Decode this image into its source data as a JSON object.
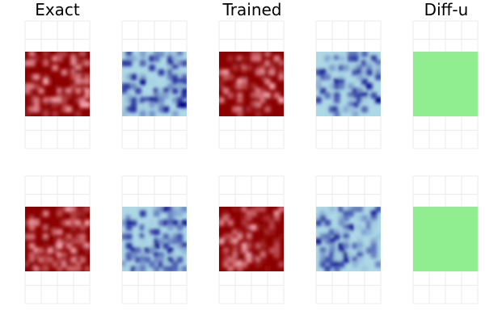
{
  "columns": [
    {
      "title": "Exact"
    },
    {
      "title": ""
    },
    {
      "title": "Trained"
    },
    {
      "title": ""
    },
    {
      "title": "Diff-u"
    }
  ],
  "colors": {
    "red_dark": "#8b0000",
    "red_light": "#f4a6ae",
    "blue_dark": "#00008b",
    "blue_light": "#add8e6",
    "diff": "#90ee90",
    "grid": "#ebebeb"
  },
  "chart_data": {
    "type": "heatmap",
    "rows": 2,
    "panels_per_row": 5,
    "panel_colormaps": [
      "reds",
      "blues",
      "reds",
      "blues",
      "uniform"
    ],
    "grid": true,
    "legend": "none"
  }
}
